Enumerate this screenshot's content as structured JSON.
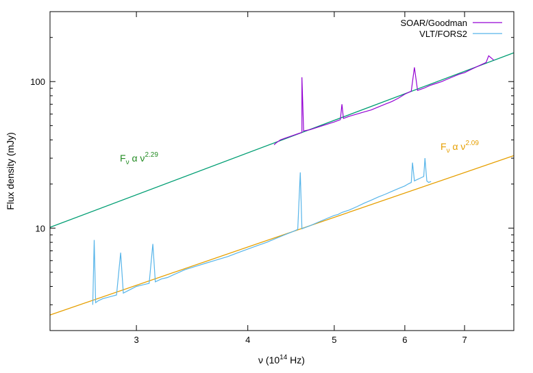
{
  "chart_data": {
    "type": "line",
    "title": "",
    "xlabel": "ν (10",
    "xlabel_sup": "14",
    "xlabel_tail": " Hz)",
    "ylabel": "Flux density (mJy)",
    "x_scale": "log",
    "y_scale": "log",
    "xlim": [
      2.4,
      7.95
    ],
    "ylim": [
      2.0,
      300
    ],
    "x_ticks": [
      3,
      4,
      5,
      6,
      7
    ],
    "x_tick_labels": [
      "3",
      "4",
      "5",
      "6",
      "7"
    ],
    "y_ticks": [
      10,
      100
    ],
    "y_tick_labels": [
      "10",
      "100"
    ],
    "grid": false,
    "legend_position": "top-right",
    "series": [
      {
        "name": "SOAR/Goodman",
        "color": "#9400d3",
        "x": [
          4.28,
          4.3,
          4.35,
          4.4,
          4.5,
          4.55,
          4.6,
          4.6,
          4.62,
          4.7,
          4.8,
          4.9,
          5.0,
          5.08,
          5.1,
          5.12,
          5.2,
          5.3,
          5.4,
          5.5,
          5.6,
          5.7,
          5.8,
          5.9,
          6.0,
          6.1,
          6.15,
          6.2,
          6.3,
          6.4,
          6.5,
          6.6,
          6.7,
          6.8,
          6.9,
          7.0,
          7.1,
          7.2,
          7.3,
          7.4,
          7.45,
          7.55
        ],
        "y": [
          37,
          38,
          40,
          41,
          43,
          44,
          45,
          107,
          46,
          47,
          49,
          51,
          53,
          55,
          70,
          56,
          58,
          60,
          62,
          64,
          67,
          70,
          73,
          77,
          82,
          86,
          125,
          87,
          90,
          94,
          97,
          100,
          104,
          108,
          112,
          115,
          120,
          125,
          130,
          135,
          150,
          140
        ]
      },
      {
        "name": "VLT/FORS2",
        "color": "#56b4e9",
        "x": [
          2.68,
          2.69,
          2.7,
          2.72,
          2.75,
          2.8,
          2.85,
          2.88,
          2.9,
          2.95,
          3.0,
          3.05,
          3.1,
          3.13,
          3.15,
          3.2,
          3.25,
          3.3,
          3.35,
          3.4,
          3.5,
          3.6,
          3.7,
          3.8,
          3.9,
          4.0,
          4.1,
          4.2,
          4.3,
          4.4,
          4.5,
          4.55,
          4.58,
          4.6,
          4.7,
          4.8,
          4.9,
          5.0,
          5.05,
          5.1,
          5.2,
          5.3,
          5.4,
          5.5,
          5.6,
          5.7,
          5.8,
          5.9,
          6.0,
          6.05,
          6.1,
          6.12,
          6.15,
          6.2,
          6.25,
          6.3,
          6.32,
          6.35,
          6.38,
          6.42
        ],
        "y": [
          3.0,
          8.3,
          3.1,
          3.2,
          3.3,
          3.4,
          3.5,
          6.8,
          3.6,
          3.8,
          4.0,
          4.1,
          4.2,
          7.8,
          4.3,
          4.5,
          4.6,
          4.8,
          5.0,
          5.2,
          5.5,
          5.8,
          6.1,
          6.4,
          6.8,
          7.2,
          7.6,
          8.0,
          8.5,
          9.0,
          9.5,
          9.8,
          24,
          9.9,
          10.4,
          11.0,
          11.6,
          12.2,
          12.4,
          12.8,
          13.3,
          14.0,
          14.8,
          15.5,
          16.3,
          17.0,
          17.8,
          18.6,
          19.4,
          20.0,
          20.5,
          28,
          21.0,
          21.5,
          22.0,
          22.5,
          30,
          21,
          20.5,
          20.8
        ]
      }
    ],
    "fits": [
      {
        "label_base": "F",
        "label_sub": "ν",
        "label_mid": " α ν",
        "label_exp": "2.29",
        "exponent": 2.29,
        "anchor_x": 4.3,
        "anchor_y": 38.5,
        "color": "#009e73",
        "label_color": "#228b22"
      },
      {
        "label_base": "F",
        "label_sub": "ν",
        "label_mid": " α ν",
        "label_exp": "2.09",
        "exponent": 2.09,
        "anchor_x": 4.3,
        "anchor_y": 8.65,
        "color": "#e69f00",
        "label_color": "#e69f00"
      }
    ]
  }
}
